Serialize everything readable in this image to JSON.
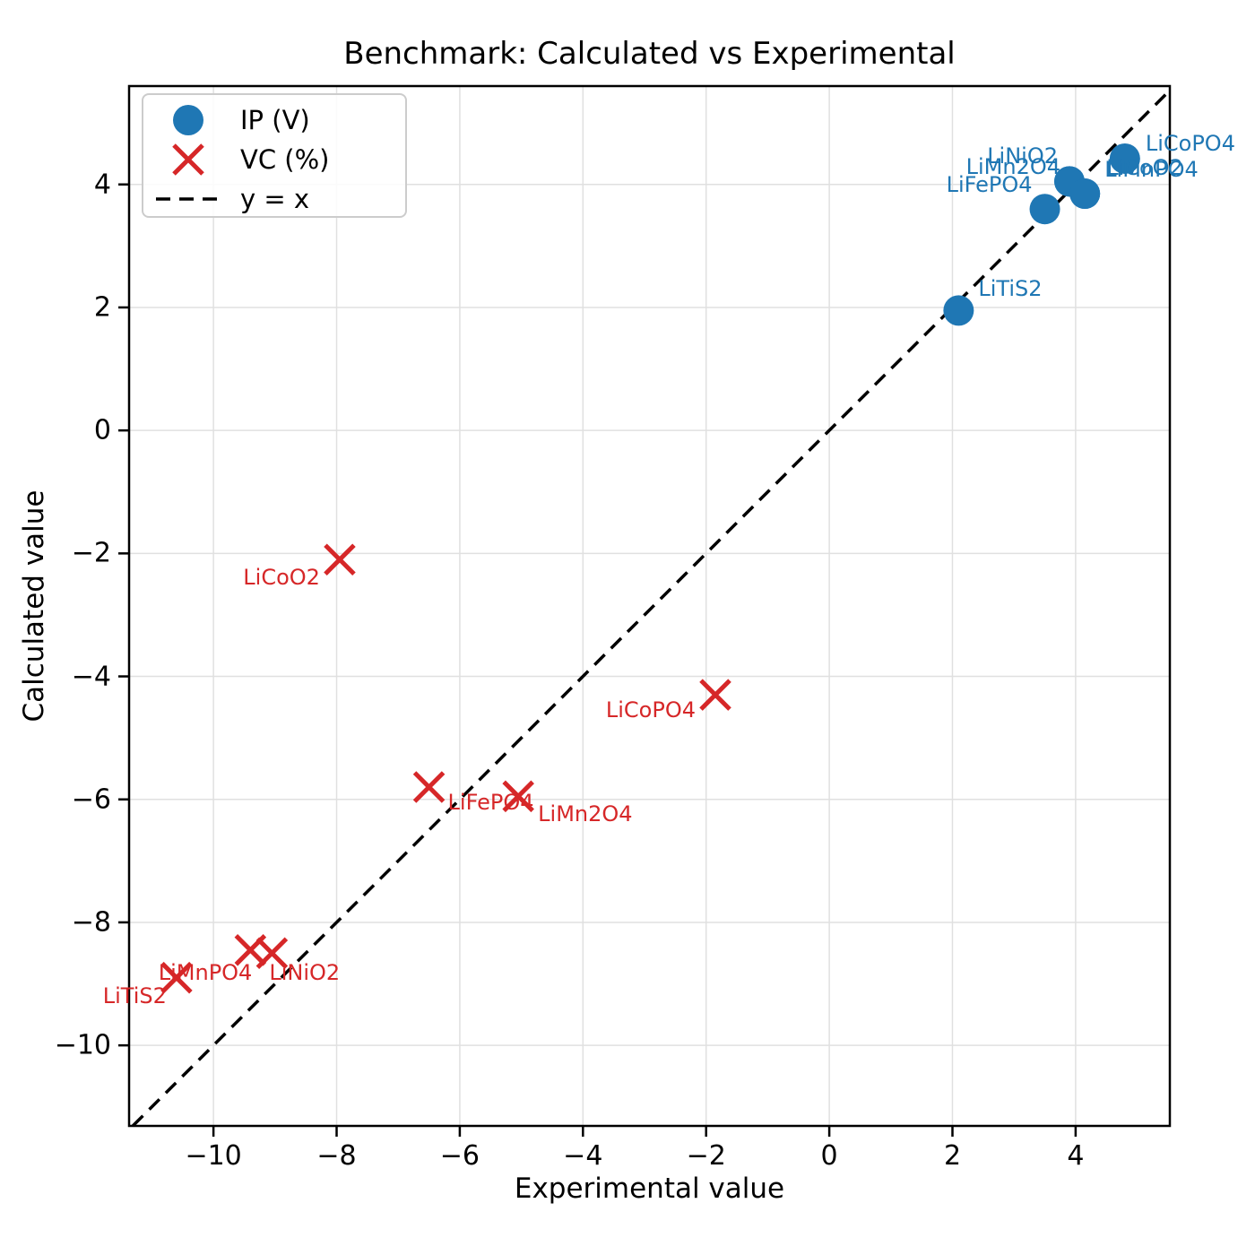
{
  "chart_data": {
    "type": "scatter",
    "title": "Benchmark: Calculated vs Experimental",
    "xlabel": "Experimental value",
    "ylabel": "Calculated value",
    "xlim": [
      -11.37,
      5.53
    ],
    "ylim": [
      -11.31,
      5.6
    ],
    "x_ticks": [
      -10,
      -8,
      -6,
      -4,
      -2,
      0,
      2,
      4
    ],
    "y_ticks": [
      -10,
      -8,
      -6,
      -4,
      -2,
      0,
      2,
      4
    ],
    "grid": true,
    "grid_color": "#e0e0e0",
    "legend_position": "upper-left",
    "reference_line": {
      "label": "y = x",
      "style": "dashed",
      "color": "#000000"
    },
    "series": [
      {
        "name": "IP (V)",
        "marker": "circle",
        "color": "#1f77b4",
        "points": [
          {
            "label": "LiTiS2",
            "x": 2.1,
            "y": 1.95,
            "label_anchor": "start",
            "label_dx": 22,
            "label_dy": -24
          },
          {
            "label": "LiFePO4",
            "x": 3.5,
            "y": 3.6,
            "label_anchor": "end",
            "label_dx": -14,
            "label_dy": -27
          },
          {
            "label": "LiNiO2",
            "x": 3.9,
            "y": 4.05,
            "label_anchor": "end",
            "label_dx": -13,
            "label_dy": -28
          },
          {
            "label": "LiMn2O4",
            "x": 3.9,
            "y": 4.05,
            "label_anchor": "end",
            "label_dx": -10,
            "label_dy": -16
          },
          {
            "label": "LiCoO2",
            "x": 4.15,
            "y": 3.85,
            "label_anchor": "start",
            "label_dx": 24,
            "label_dy": -29
          },
          {
            "label": "LiMnPO4",
            "x": 4.15,
            "y": 3.85,
            "label_anchor": "start",
            "label_dx": 22,
            "label_dy": -27
          },
          {
            "label": "LiCoPO4",
            "x": 4.8,
            "y": 4.42,
            "label_anchor": "start",
            "label_dx": 23,
            "label_dy": -17
          }
        ]
      },
      {
        "name": "VC (%)",
        "marker": "x",
        "color": "#d62728",
        "points": [
          {
            "label": "LiTiS2",
            "x": -10.6,
            "y": -8.9,
            "label_anchor": "end",
            "label_dx": -11,
            "label_dy": 20
          },
          {
            "label": "LiMnPO4",
            "x": -9.4,
            "y": -8.45,
            "label_anchor": "end",
            "label_dx": 2,
            "label_dy": 25
          },
          {
            "label": "LiNiO2",
            "x": -9.05,
            "y": -8.5,
            "label_anchor": "start",
            "label_dx": -3,
            "label_dy": 22
          },
          {
            "label": "LiCoO2",
            "x": -7.95,
            "y": -2.1,
            "label_anchor": "end",
            "label_dx": -22,
            "label_dy": 20
          },
          {
            "label": "LiFePO4",
            "x": -6.5,
            "y": -5.8,
            "label_anchor": "start",
            "label_dx": 21,
            "label_dy": 17
          },
          {
            "label": "LiMn2O4",
            "x": -5.05,
            "y": -5.95,
            "label_anchor": "start",
            "label_dx": 22,
            "label_dy": 20
          },
          {
            "label": "LiCoPO4",
            "x": -1.85,
            "y": -4.3,
            "label_anchor": "end",
            "label_dx": -22,
            "label_dy": 17
          }
        ]
      }
    ]
  }
}
